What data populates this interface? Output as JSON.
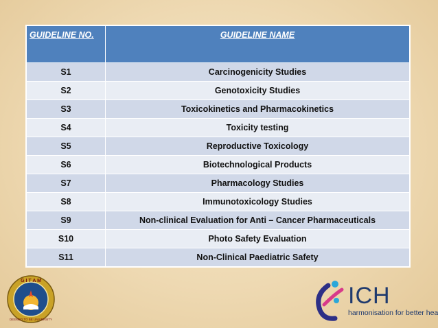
{
  "table": {
    "headers": [
      "GUIDELINE NO.",
      "GUIDELINE NAME"
    ],
    "rows": [
      {
        "no": "S1",
        "name": "Carcinogenicity Studies"
      },
      {
        "no": "S2",
        "name": "Genotoxicity Studies"
      },
      {
        "no": "S3",
        "name": "Toxicokinetics and Pharmacokinetics"
      },
      {
        "no": "S4",
        "name": "Toxicity testing"
      },
      {
        "no": "S5",
        "name": "Reproductive Toxicology"
      },
      {
        "no": "S6",
        "name": "Biotechnological Products"
      },
      {
        "no": "S7",
        "name": "Pharmacology Studies"
      },
      {
        "no": "S8",
        "name": "Immunotoxicology Studies"
      },
      {
        "no": "S9",
        "name": "Non-clinical Evaluation for Anti – Cancer Pharmaceuticals"
      },
      {
        "no": "S10",
        "name": "Photo Safety Evaluation"
      },
      {
        "no": "S11",
        "name": "Non-Clinical Paediatric Safety"
      }
    ]
  },
  "logos": {
    "gitam": {
      "text": "GITAM",
      "motto": "DEEMED TO BE UNIVERSITY"
    },
    "ich": {
      "name": "ICH",
      "tagline": "harmonisation for better health"
    }
  },
  "colors": {
    "header": "#4f81bd",
    "row_odd": "#d0d8e8",
    "row_even": "#e9edf4",
    "background": "#efdcb8"
  }
}
